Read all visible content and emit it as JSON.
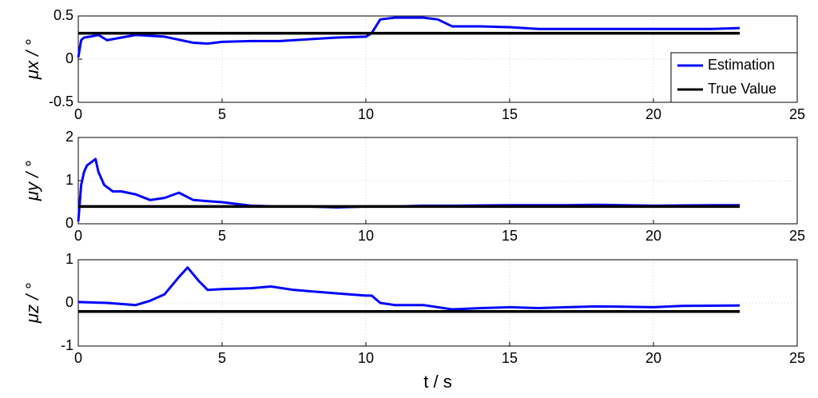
{
  "chart_data": [
    {
      "type": "line",
      "ylabel": "μx / °",
      "x": [
        0,
        0.1,
        0.2,
        0.4,
        0.7,
        1.0,
        1.5,
        2,
        3,
        4,
        4.5,
        5,
        6,
        7,
        8,
        9,
        10,
        10.2,
        10.5,
        11,
        12,
        12.5,
        13,
        14,
        15,
        16,
        17,
        18,
        20,
        22,
        23
      ],
      "series": [
        {
          "name": "Estimation",
          "color": "#0000ff",
          "values": [
            0.02,
            0.22,
            0.25,
            0.26,
            0.28,
            0.22,
            0.25,
            0.28,
            0.26,
            0.19,
            0.18,
            0.2,
            0.21,
            0.21,
            0.23,
            0.25,
            0.26,
            0.3,
            0.46,
            0.48,
            0.48,
            0.46,
            0.38,
            0.38,
            0.37,
            0.35,
            0.35,
            0.35,
            0.35,
            0.35,
            0.36
          ]
        },
        {
          "name": "True Value",
          "color": "#000000",
          "values": [
            0.3,
            0.3,
            0.3,
            0.3,
            0.3,
            0.3,
            0.3,
            0.3,
            0.3,
            0.3,
            0.3,
            0.3,
            0.3,
            0.3,
            0.3,
            0.3,
            0.3,
            0.3,
            0.3,
            0.3,
            0.3,
            0.3,
            0.3,
            0.3,
            0.3,
            0.3,
            0.3,
            0.3,
            0.3,
            0.3,
            0.3
          ]
        }
      ],
      "xlim": [
        0,
        25
      ],
      "xticks": [
        0,
        5,
        10,
        15,
        20,
        25
      ],
      "ylim": [
        -0.5,
        0.5
      ],
      "yticks": [
        -0.5,
        0,
        0.5
      ],
      "grid": true,
      "legend": "right"
    },
    {
      "type": "line",
      "ylabel": "μy / °",
      "x": [
        0,
        0.1,
        0.2,
        0.3,
        0.5,
        0.6,
        0.7,
        0.9,
        1.2,
        1.5,
        2,
        2.5,
        3,
        3.5,
        4,
        5,
        6,
        7,
        8,
        9,
        10,
        11,
        12,
        13,
        15,
        17,
        18,
        20,
        22,
        23
      ],
      "series": [
        {
          "name": "Estimation",
          "color": "#0000ff",
          "values": [
            0.05,
            0.9,
            1.2,
            1.35,
            1.45,
            1.5,
            1.2,
            0.9,
            0.75,
            0.75,
            0.68,
            0.55,
            0.6,
            0.72,
            0.55,
            0.5,
            0.42,
            0.4,
            0.4,
            0.38,
            0.4,
            0.4,
            0.42,
            0.42,
            0.43,
            0.43,
            0.44,
            0.42,
            0.43,
            0.43
          ]
        },
        {
          "name": "True Value",
          "color": "#000000",
          "values": [
            0.4,
            0.4,
            0.4,
            0.4,
            0.4,
            0.4,
            0.4,
            0.4,
            0.4,
            0.4,
            0.4,
            0.4,
            0.4,
            0.4,
            0.4,
            0.4,
            0.4,
            0.4,
            0.4,
            0.4,
            0.4,
            0.4,
            0.4,
            0.4,
            0.4,
            0.4,
            0.4,
            0.4,
            0.4,
            0.4
          ]
        }
      ],
      "xlim": [
        0,
        25
      ],
      "xticks": [
        0,
        5,
        10,
        15,
        20,
        25
      ],
      "ylim": [
        0,
        2
      ],
      "yticks": [
        0,
        1,
        2
      ],
      "grid": true
    },
    {
      "type": "line",
      "ylabel": "μz / °",
      "xlabel": "t / s",
      "x": [
        0,
        1,
        2,
        2.5,
        3,
        3.5,
        3.8,
        4.2,
        4.5,
        5,
        6,
        6.7,
        7.5,
        9,
        10,
        10.2,
        10.5,
        11,
        12,
        13,
        14,
        15,
        16,
        17,
        18,
        20,
        21,
        23
      ],
      "series": [
        {
          "name": "Estimation",
          "color": "#0000ff",
          "values": [
            0.02,
            0.0,
            -0.05,
            0.05,
            0.2,
            0.6,
            0.82,
            0.5,
            0.3,
            0.32,
            0.34,
            0.38,
            0.3,
            0.22,
            0.17,
            0.17,
            0.0,
            -0.05,
            -0.05,
            -0.15,
            -0.12,
            -0.1,
            -0.12,
            -0.1,
            -0.08,
            -0.1,
            -0.07,
            -0.06
          ]
        },
        {
          "name": "True Value",
          "color": "#000000",
          "values": [
            -0.2,
            -0.2,
            -0.2,
            -0.2,
            -0.2,
            -0.2,
            -0.2,
            -0.2,
            -0.2,
            -0.2,
            -0.2,
            -0.2,
            -0.2,
            -0.2,
            -0.2,
            -0.2,
            -0.2,
            -0.2,
            -0.2,
            -0.2,
            -0.2,
            -0.2,
            -0.2,
            -0.2,
            -0.2,
            -0.2,
            -0.2,
            -0.2
          ]
        }
      ],
      "xlim": [
        0,
        25
      ],
      "xticks": [
        0,
        5,
        10,
        15,
        20,
        25
      ],
      "ylim": [
        -1,
        1
      ],
      "yticks": [
        -1,
        0,
        1
      ],
      "grid": true
    }
  ]
}
